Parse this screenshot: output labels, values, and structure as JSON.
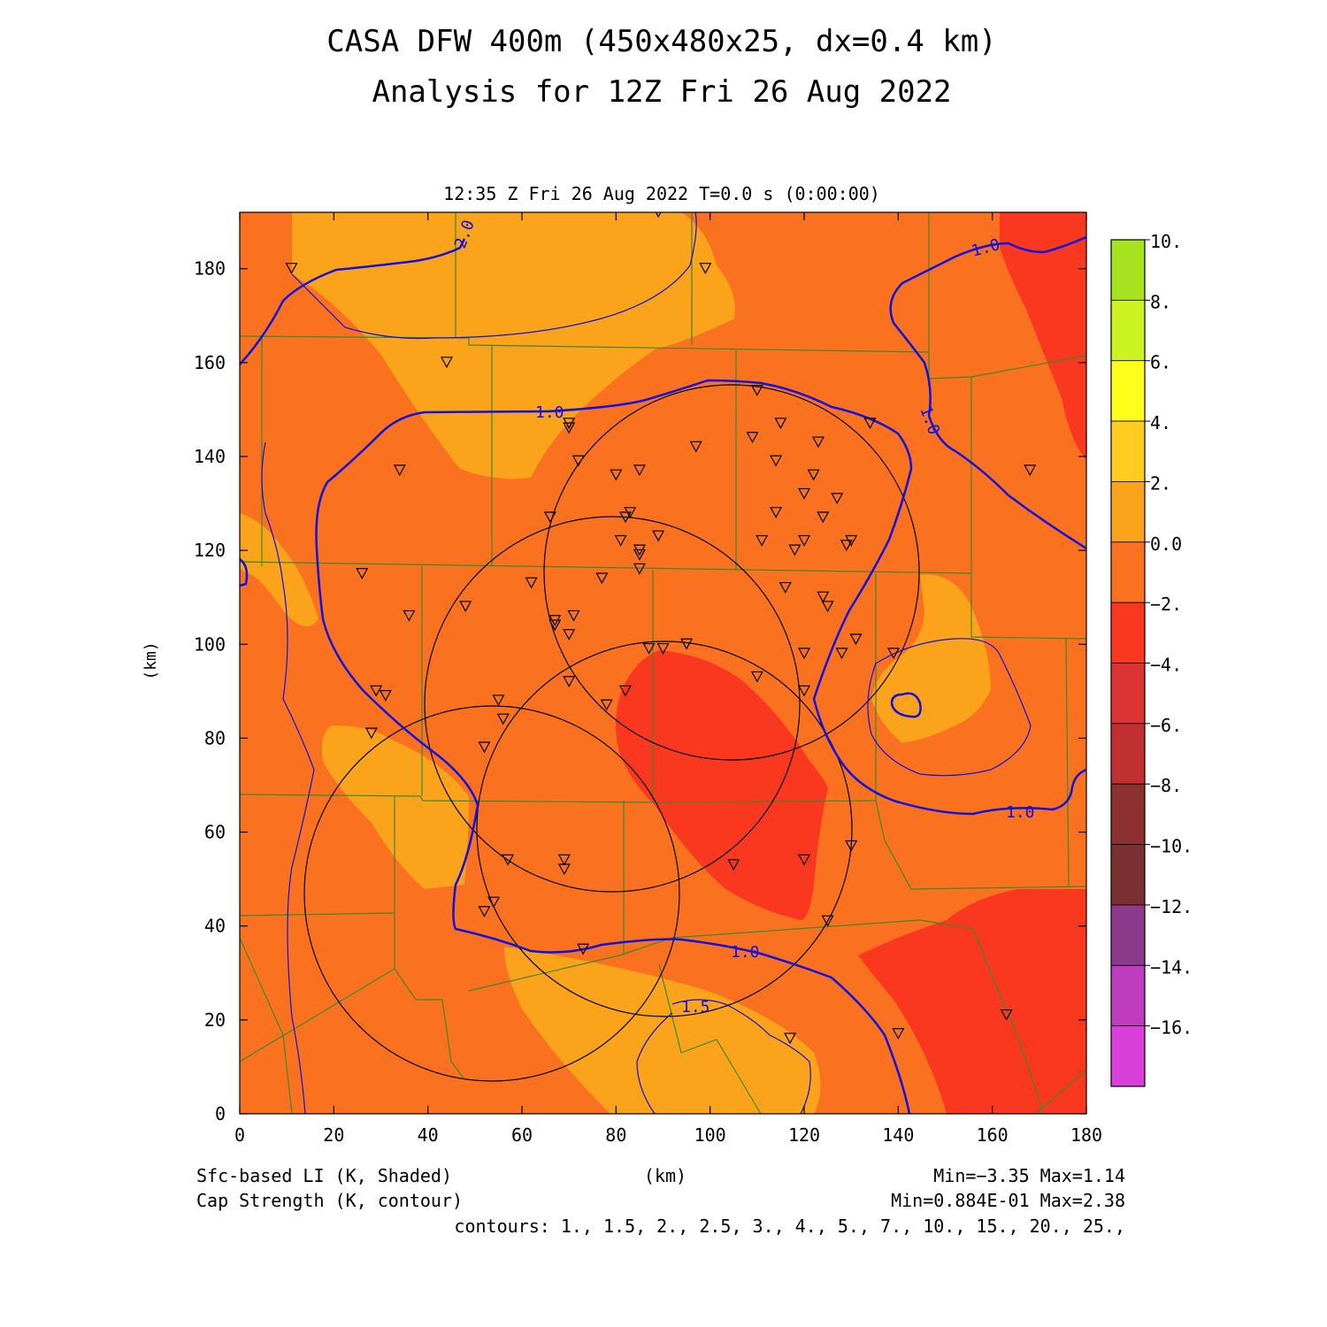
{
  "title": {
    "line1": "CASA DFW 400m (450x480x25, dx=0.4 km)",
    "line2": "Analysis for 12Z Fri 26 Aug 2022"
  },
  "subtitle": "12:35 Z Fri 26 Aug 2022    T=0.0 s (0:00:00)",
  "axes": {
    "xlabel": "(km)",
    "ylabel": "(km)",
    "x_ticks": [
      "0",
      "20",
      "40",
      "60",
      "80",
      "100",
      "120",
      "140",
      "160",
      "180"
    ],
    "y_ticks": [
      "0",
      "20",
      "40",
      "60",
      "80",
      "100",
      "120",
      "140",
      "160",
      "180"
    ],
    "x_range": [
      0,
      180
    ],
    "y_range": [
      0,
      192
    ]
  },
  "colorbar": {
    "labels": [
      "10.",
      "8.",
      "6.",
      "4.",
      "2.",
      "0.0",
      "−2.",
      "−4.",
      "−6.",
      "−8.",
      "−10.",
      "−12.",
      "−14.",
      "−16."
    ],
    "colors": [
      "#a6e31e",
      "#ccf21f",
      "#ffff1a",
      "#ffcc1f",
      "#fba31a",
      "#fa7220",
      "#fa3820",
      "#dc3434",
      "#c03030",
      "#8c3030",
      "#7a3030",
      "#8c3a8c",
      "#c03cbe",
      "#d940d9"
    ]
  },
  "legend": {
    "shaded": "Sfc-based LI (K, Shaded)",
    "contour": "Cap Strength (K, contour)",
    "units": "(km)",
    "shaded_minmax": "Min=−3.35 Max=1.14",
    "contour_minmax": "Min=0.884E-01 Max=2.38",
    "contours": "contours: 1., 1.5, 2., 2.5, 3., 4., 5., 7., 10., 15., 20., 25.,"
  },
  "contour_labels": [
    "2.0",
    "1.0",
    "1.0",
    "1.0",
    "1.0",
    "1.0",
    "1.5"
  ],
  "colors": {
    "background": "#fa7220",
    "positive": "#fba31a",
    "negative": "#fa3820",
    "contour": "#1010e0",
    "county_lines": "#3a8a2a"
  },
  "chart_data": {
    "type": "heatmap",
    "field_shaded": "Sfc-based LI (K)",
    "field_contour": "Cap Strength (K)",
    "shaded_min": -3.35,
    "shaded_max": 1.14,
    "contour_min": 0.0884,
    "contour_max": 2.38,
    "contour_levels": [
      1,
      1.5,
      2,
      2.5,
      3,
      4,
      5,
      7,
      10,
      15,
      20,
      25
    ],
    "radar_rings": [
      {
        "cx": 55,
        "cy": 48,
        "r": 40
      },
      {
        "cx": 79,
        "cy": 89,
        "r": 38
      },
      {
        "cx": 105,
        "cy": 116,
        "r": 40
      },
      {
        "cx": 89,
        "cy": 58,
        "r": 40
      }
    ],
    "stations": [
      [
        11,
        180
      ],
      [
        44,
        160
      ],
      [
        89,
        192
      ],
      [
        99,
        180
      ],
      [
        34,
        137
      ],
      [
        70,
        147
      ],
      [
        70,
        146
      ],
      [
        72,
        139
      ],
      [
        80,
        136
      ],
      [
        85,
        137
      ],
      [
        97,
        142
      ],
      [
        110,
        154
      ],
      [
        115,
        147
      ],
      [
        123,
        143
      ],
      [
        109,
        144
      ],
      [
        114,
        139
      ],
      [
        122,
        136
      ],
      [
        120,
        132
      ],
      [
        127,
        131
      ],
      [
        114,
        128
      ],
      [
        124,
        127
      ],
      [
        111,
        122
      ],
      [
        120,
        122
      ],
      [
        118,
        120
      ],
      [
        129,
        121
      ],
      [
        130,
        122
      ],
      [
        134,
        147
      ],
      [
        168,
        137
      ],
      [
        26,
        115
      ],
      [
        36,
        106
      ],
      [
        48,
        108
      ],
      [
        62,
        113
      ],
      [
        66,
        127
      ],
      [
        82,
        127
      ],
      [
        83,
        128
      ],
      [
        89,
        123
      ],
      [
        81,
        122
      ],
      [
        85,
        120
      ],
      [
        85,
        119
      ],
      [
        77,
        114
      ],
      [
        85,
        116
      ],
      [
        67,
        105
      ],
      [
        67,
        104
      ],
      [
        70,
        102
      ],
      [
        71,
        106
      ],
      [
        116,
        112
      ],
      [
        124,
        110
      ],
      [
        125,
        108
      ],
      [
        128,
        98
      ],
      [
        131,
        101
      ],
      [
        120,
        98
      ],
      [
        139,
        98
      ],
      [
        87,
        99
      ],
      [
        90,
        99
      ],
      [
        95,
        100
      ],
      [
        70,
        92
      ],
      [
        82,
        90
      ],
      [
        78,
        87
      ],
      [
        120,
        90
      ],
      [
        110,
        93
      ],
      [
        29,
        90
      ],
      [
        31,
        89
      ],
      [
        28,
        81
      ],
      [
        55,
        88
      ],
      [
        56,
        84
      ],
      [
        52,
        78
      ],
      [
        57,
        54
      ],
      [
        69,
        54
      ],
      [
        69,
        52
      ],
      [
        105,
        53
      ],
      [
        120,
        54
      ],
      [
        130,
        57
      ],
      [
        52,
        43
      ],
      [
        54,
        45
      ],
      [
        73,
        35
      ],
      [
        125,
        41
      ],
      [
        117,
        16
      ],
      [
        140,
        17
      ],
      [
        163,
        21
      ]
    ]
  }
}
